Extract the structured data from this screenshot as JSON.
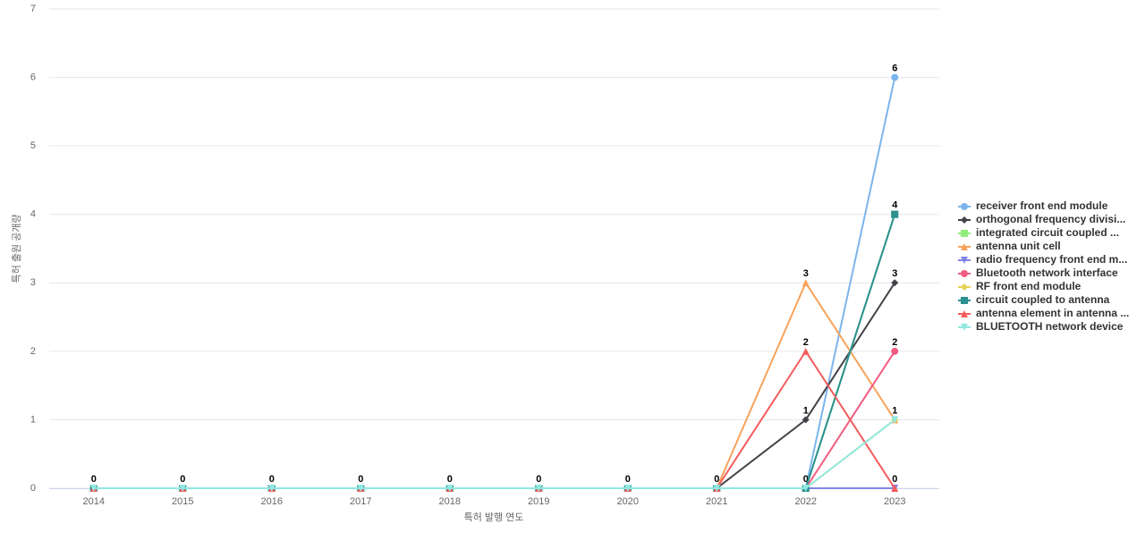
{
  "chart_data": {
    "type": "line",
    "x_label": "특허 발행 연도",
    "y_label": "특허 출원 공개량",
    "categories": [
      "2014",
      "2015",
      "2016",
      "2017",
      "2018",
      "2019",
      "2020",
      "2021",
      "2022",
      "2023"
    ],
    "ylim": [
      0,
      7
    ],
    "yticks": [
      0,
      1,
      2,
      3,
      4,
      5,
      6,
      7
    ],
    "grid": true,
    "legend": "right",
    "series": [
      {
        "name": "receiver front end module",
        "color": "#7cb5ec",
        "marker": "circle",
        "values": [
          0,
          0,
          0,
          0,
          0,
          0,
          0,
          0,
          0,
          6
        ]
      },
      {
        "name": "orthogonal frequency divisi...",
        "color": "#434348",
        "marker": "diamond",
        "values": [
          0,
          0,
          0,
          0,
          0,
          0,
          0,
          0,
          1,
          3
        ]
      },
      {
        "name": "integrated circuit coupled ...",
        "color": "#90ed7d",
        "marker": "square",
        "values": [
          0,
          0,
          0,
          0,
          0,
          0,
          0,
          0,
          0,
          4
        ]
      },
      {
        "name": "antenna unit cell",
        "color": "#f7a35c",
        "marker": "triangle",
        "values": [
          0,
          0,
          0,
          0,
          0,
          0,
          0,
          0,
          3,
          1
        ]
      },
      {
        "name": "radio frequency front end m...",
        "color": "#8085e9",
        "marker": "triangle-down",
        "values": [
          0,
          0,
          0,
          0,
          0,
          0,
          0,
          0,
          0,
          0
        ]
      },
      {
        "name": "Bluetooth network interface",
        "color": "#f15c80",
        "marker": "circle",
        "values": [
          0,
          0,
          0,
          0,
          0,
          0,
          0,
          0,
          0,
          2
        ]
      },
      {
        "name": "RF front end module",
        "color": "#e4d354",
        "marker": "diamond",
        "values": [
          0,
          0,
          0,
          0,
          0,
          0,
          0,
          0,
          0,
          1
        ]
      },
      {
        "name": "circuit coupled to antenna",
        "color": "#2b908f",
        "marker": "square",
        "values": [
          0,
          0,
          0,
          0,
          0,
          0,
          0,
          0,
          0,
          4
        ]
      },
      {
        "name": "antenna element in antenna ...",
        "color": "#f45b5b",
        "marker": "triangle",
        "values": [
          0,
          0,
          0,
          0,
          0,
          0,
          0,
          0,
          2,
          0
        ]
      },
      {
        "name": "BLUETOOTH network device",
        "color": "#91e8e1",
        "marker": "triangle-down",
        "values": [
          0,
          0,
          0,
          0,
          0,
          0,
          0,
          0,
          0,
          1
        ]
      }
    ]
  }
}
